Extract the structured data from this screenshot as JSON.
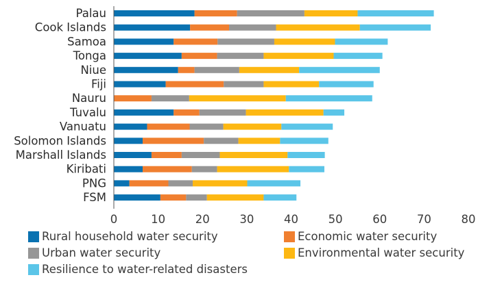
{
  "chart_data": {
    "type": "bar",
    "orientation": "horizontal",
    "stacked": true,
    "categories": [
      "Palau",
      "Cook Islands",
      "Samoa",
      "Tonga",
      "Niue",
      "Fiji",
      "Nauru",
      "Tuvalu",
      "Vanuatu",
      "Solomon Islands",
      "Marshall Islands",
      "Kiribati",
      "PNG",
      "FSM"
    ],
    "series": [
      {
        "name": "Rural household water security",
        "color": "#0a72b1",
        "values": [
          18.2,
          17.2,
          13.5,
          15.3,
          14.5,
          11.7,
          0,
          13.5,
          7.5,
          6.5,
          8.5,
          6.5,
          3.5,
          10.5
        ]
      },
      {
        "name": "Economic water security",
        "color": "#f07f30",
        "values": [
          9.6,
          8.8,
          9.9,
          8.0,
          3.7,
          13.1,
          8.5,
          5.8,
          9.6,
          13.8,
          6.8,
          11.1,
          8.8,
          5.8
        ]
      },
      {
        "name": "Urban water security",
        "color": "#969696",
        "values": [
          15.2,
          10.6,
          12.8,
          10.5,
          10.1,
          9.0,
          8.5,
          10.5,
          7.6,
          7.8,
          8.6,
          5.7,
          5.5,
          4.7
        ]
      },
      {
        "name": "Environmental water security",
        "color": "#fdb813",
        "values": [
          12.0,
          18.9,
          13.7,
          15.8,
          13.5,
          12.5,
          21.8,
          17.5,
          13.1,
          9.4,
          15.3,
          16.2,
          12.3,
          12.8
        ]
      },
      {
        "name": "Resilience to water-related disasters",
        "color": "#5bc5e8",
        "values": [
          17.2,
          16.0,
          11.9,
          11.0,
          18.2,
          12.3,
          19.5,
          4.7,
          11.6,
          10.9,
          8.4,
          8.0,
          12.0,
          7.4
        ]
      }
    ],
    "xlim": [
      0,
      80
    ],
    "x_ticks": [
      "0",
      "10",
      "20",
      "30",
      "40",
      "50",
      "60",
      "70",
      "80"
    ],
    "grid": false,
    "legend_position": "bottom"
  }
}
